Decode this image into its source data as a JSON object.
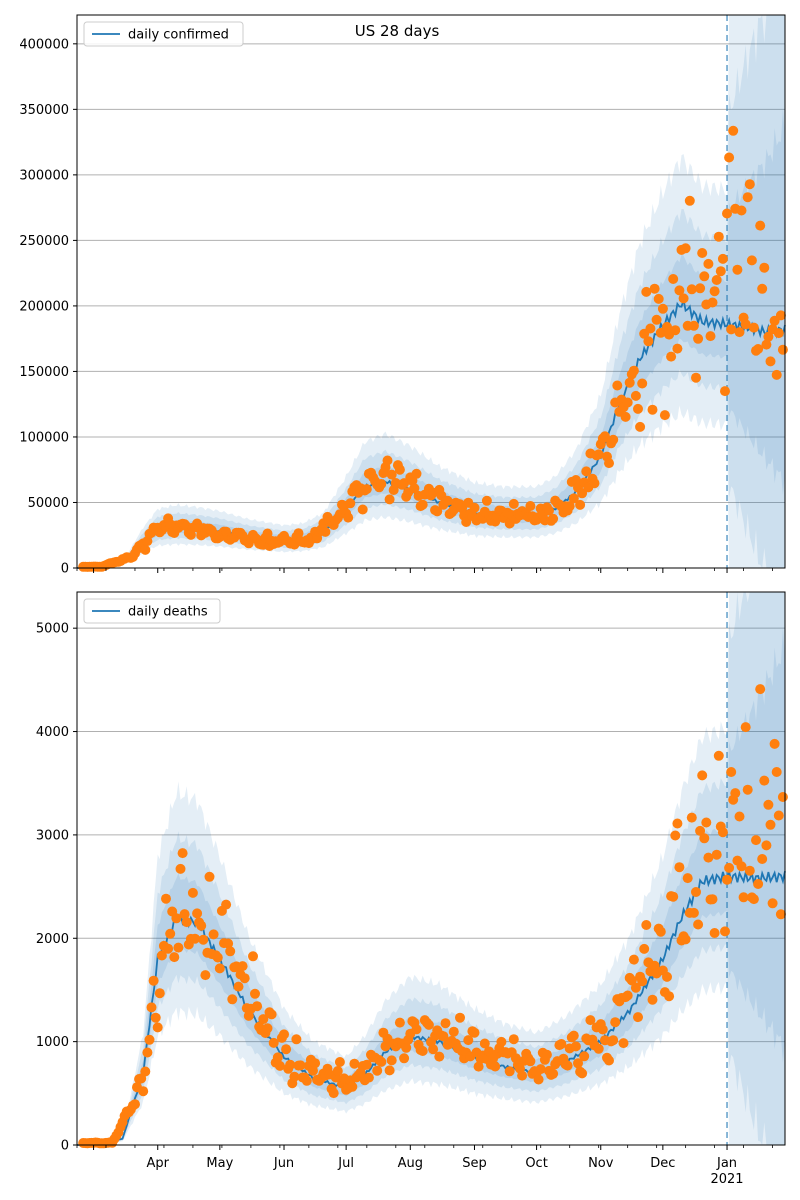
{
  "title": "US 28 days",
  "colors": {
    "line": "#1f77b4",
    "points": "#ff7f0e",
    "band": "#1f77b4",
    "grid": "#b0b0b0",
    "forecast_start": "#1f77b4"
  },
  "chart_data": [
    {
      "type": "line",
      "title": "US 28 days",
      "xlabel": "",
      "ylabel": "",
      "ylim": [
        0,
        422000
      ],
      "yticks": [
        0,
        50000,
        100000,
        150000,
        200000,
        250000,
        300000,
        350000,
        400000
      ],
      "yticks_labels": [
        "0",
        "50000",
        "100000",
        "150000",
        "200000",
        "250000",
        "300000",
        "350000",
        "400000"
      ],
      "grid": "horizontal",
      "legend": "upper-left",
      "series": [
        {
          "name": "daily confirmed",
          "kind": "line",
          "x": [
            "2020-03-01",
            "2020-03-15",
            "2020-03-25",
            "2020-04-01",
            "2020-04-10",
            "2020-04-20",
            "2020-05-01",
            "2020-05-15",
            "2020-06-01",
            "2020-06-10",
            "2020-06-20",
            "2020-07-01",
            "2020-07-10",
            "2020-07-20",
            "2020-08-01",
            "2020-08-15",
            "2020-09-01",
            "2020-09-15",
            "2020-10-01",
            "2020-10-10",
            "2020-10-20",
            "2020-11-01",
            "2020-11-10",
            "2020-11-20",
            "2020-12-01",
            "2020-12-10",
            "2020-12-20",
            "2021-01-01",
            "2021-01-10",
            "2021-01-20",
            "2021-01-29"
          ],
          "y": [
            0,
            3000,
            20000,
            29000,
            31000,
            30000,
            28000,
            24000,
            21000,
            22000,
            27000,
            45000,
            62000,
            66000,
            60000,
            50000,
            42000,
            40000,
            40000,
            45000,
            58000,
            85000,
            125000,
            160000,
            185000,
            202000,
            188000,
            186000,
            184000,
            180000,
            182000
          ]
        },
        {
          "name": "",
          "kind": "observed",
          "x": [
            "2020-03-05",
            "2020-03-20",
            "2020-04-01",
            "2020-04-15",
            "2020-05-01",
            "2020-05-15",
            "2020-06-01",
            "2020-06-15",
            "2020-07-01",
            "2020-07-15",
            "2020-08-01",
            "2020-08-15",
            "2020-09-01",
            "2020-09-15",
            "2020-10-01",
            "2020-10-15",
            "2020-11-01",
            "2020-11-15",
            "2020-12-01",
            "2020-12-10",
            "2020-12-20",
            "2020-12-31",
            "2021-01-05",
            "2021-01-15",
            "2021-01-25"
          ],
          "y": [
            1000,
            9000,
            32000,
            30000,
            26000,
            22000,
            20000,
            22000,
            47000,
            68000,
            62000,
            52000,
            42000,
            38000,
            41000,
            50000,
            86000,
            142000,
            178000,
            215000,
            196000,
            235000,
            270000,
            205000,
            165000
          ]
        }
      ],
      "forecast_start": "2021-01-01"
    },
    {
      "type": "line",
      "title": "",
      "xlabel": "",
      "ylabel": "",
      "ylim": [
        0,
        5350
      ],
      "yticks": [
        0,
        1000,
        2000,
        3000,
        4000,
        5000
      ],
      "yticks_labels": [
        "0",
        "1000",
        "2000",
        "3000",
        "4000",
        "5000"
      ],
      "xticks_labels": [
        "Apr",
        "May",
        "Jun",
        "Jul",
        "Aug",
        "Sep",
        "Oct",
        "Nov",
        "Dec",
        "Jan\n2021"
      ],
      "grid": "horizontal",
      "legend": "upper-left",
      "series": [
        {
          "name": "daily deaths",
          "kind": "line",
          "x": [
            "2020-03-01",
            "2020-03-15",
            "2020-03-25",
            "2020-04-01",
            "2020-04-10",
            "2020-04-20",
            "2020-05-01",
            "2020-05-15",
            "2020-06-01",
            "2020-06-15",
            "2020-07-01",
            "2020-07-10",
            "2020-07-20",
            "2020-08-01",
            "2020-08-15",
            "2020-09-01",
            "2020-09-15",
            "2020-10-01",
            "2020-10-15",
            "2020-11-01",
            "2020-11-15",
            "2020-12-01",
            "2020-12-10",
            "2020-12-20",
            "2021-01-01",
            "2021-01-15",
            "2021-01-29"
          ],
          "y": [
            0,
            60,
            700,
            1800,
            2200,
            2150,
            1800,
            1300,
            850,
            650,
            550,
            680,
            900,
            1050,
            1000,
            850,
            760,
            700,
            800,
            1000,
            1300,
            1800,
            2200,
            2550,
            2600,
            2580,
            2600
          ]
        },
        {
          "name": "",
          "kind": "observed",
          "x": [
            "2020-03-10",
            "2020-03-25",
            "2020-04-05",
            "2020-04-15",
            "2020-05-01",
            "2020-05-15",
            "2020-06-01",
            "2020-06-15",
            "2020-07-01",
            "2020-07-15",
            "2020-08-01",
            "2020-08-15",
            "2020-09-01",
            "2020-09-15",
            "2020-10-01",
            "2020-10-15",
            "2020-11-01",
            "2020-11-15",
            "2020-12-01",
            "2020-12-10",
            "2020-12-20",
            "2020-12-31",
            "2021-01-07",
            "2021-01-15",
            "2021-01-25"
          ],
          "y": [
            20,
            600,
            2100,
            2300,
            2000,
            1400,
            900,
            700,
            600,
            850,
            1050,
            1100,
            900,
            850,
            750,
            850,
            1000,
            1400,
            1800,
            2500,
            2700,
            2600,
            3000,
            2900,
            3100
          ]
        }
      ],
      "forecast_start": "2021-01-01"
    }
  ]
}
